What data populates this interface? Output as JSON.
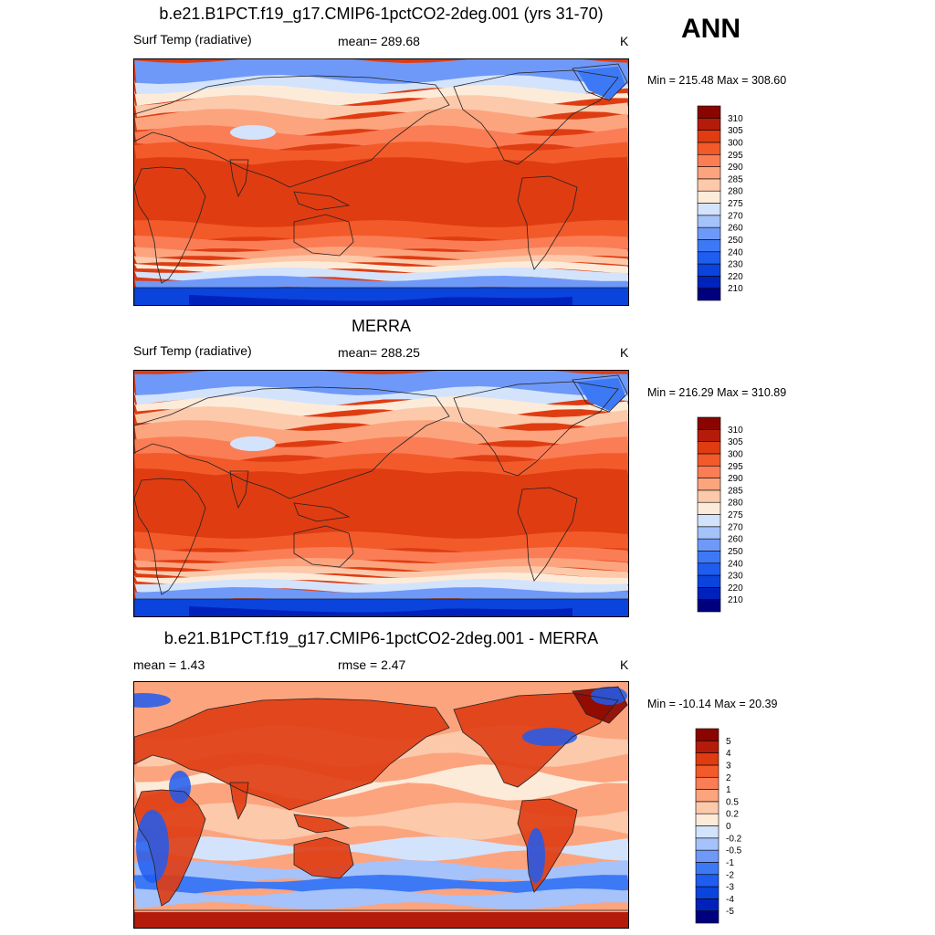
{
  "season": "ANN",
  "colors": {
    "abs": [
      "#00007f",
      "#0022bb",
      "#0a44dd",
      "#1f5cf0",
      "#3d79f5",
      "#6f99f8",
      "#a5c2fa",
      "#d3e3fb",
      "#fdebd9",
      "#fcc9ab",
      "#fca47e",
      "#fb7d55",
      "#f35a2a",
      "#df3c12",
      "#b51b0a",
      "#8a0500"
    ],
    "diff": [
      "#00007f",
      "#0022bb",
      "#0a44dd",
      "#1f5cf0",
      "#3d79f5",
      "#6f99f8",
      "#a5c2fa",
      "#d3e3fb",
      "#fdebd9",
      "#fcc9ab",
      "#fca47e",
      "#fb7d55",
      "#f35a2a",
      "#df3c12",
      "#b51b0a",
      "#8a0500"
    ]
  },
  "panels": [
    {
      "title": "b.e21.B1PCT.f19_g17.CMIP6-1pctCO2-2deg.001 (yrs 31-70)",
      "left_label": "Surf Temp (radiative)",
      "center_label": "mean= 289.68",
      "units": "K",
      "range": "Min = 215.48 Max = 308.60"
    },
    {
      "title": "MERRA",
      "left_label": "Surf Temp (radiative)",
      "center_label": "mean= 288.25",
      "units": "K",
      "range": "Min = 216.29 Max = 310.89"
    },
    {
      "title": "b.e21.B1PCT.f19_g17.CMIP6-1pctCO2-2deg.001 - MERRA",
      "left_label": "mean =   1.43",
      "center_label": "rmse =   2.47",
      "units": "K",
      "range": "Min = -10.14 Max =  20.39"
    }
  ],
  "chart_data": [
    {
      "type": "heatmap",
      "title": "b.e21.B1PCT.f19_g17.CMIP6-1pctCO2-2deg.001 (yrs 31-70)",
      "variable": "Surf Temp (radiative)",
      "units": "K",
      "mean": 289.68,
      "min": 215.48,
      "max": 308.6,
      "colorbar_levels": [
        "310",
        "305",
        "300",
        "295",
        "290",
        "285",
        "280",
        "275",
        "270",
        "260",
        "250",
        "240",
        "230",
        "220",
        "210"
      ]
    },
    {
      "type": "heatmap",
      "title": "MERRA",
      "variable": "Surf Temp (radiative)",
      "units": "K",
      "mean": 288.25,
      "min": 216.29,
      "max": 310.89,
      "colorbar_levels": [
        "310",
        "305",
        "300",
        "295",
        "290",
        "285",
        "280",
        "275",
        "270",
        "260",
        "250",
        "240",
        "230",
        "220",
        "210"
      ]
    },
    {
      "type": "heatmap",
      "title": "b.e21.B1PCT.f19_g17.CMIP6-1pctCO2-2deg.001 - MERRA",
      "units": "K",
      "mean": 1.43,
      "rmse": 2.47,
      "min": -10.14,
      "max": 20.39,
      "colorbar_levels": [
        "5",
        "4",
        "3",
        "2",
        "1",
        "0.5",
        "0.2",
        "0",
        "-0.2",
        "-0.5",
        "-1",
        "-2",
        "-3",
        "-4",
        "-5"
      ]
    }
  ]
}
